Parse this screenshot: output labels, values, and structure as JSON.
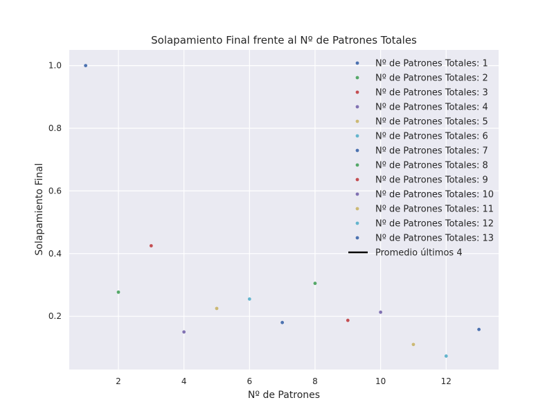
{
  "chart_data": {
    "type": "scatter",
    "title": "Solapamiento Final frente al Nº de Patrones Totales",
    "xlabel": "Nº de Patrones",
    "ylabel": "Solapamiento Final",
    "xlim": [
      0.5,
      13.6
    ],
    "ylim": [
      0.03,
      1.05
    ],
    "xticks": [
      2,
      4,
      6,
      8,
      10,
      12
    ],
    "yticks": [
      0.2,
      0.4,
      0.6,
      0.8,
      1.0
    ],
    "xtick_labels": [
      "2",
      "4",
      "6",
      "8",
      "10",
      "12"
    ],
    "ytick_labels": [
      "0.2",
      "0.4",
      "0.6",
      "0.8",
      "1.0"
    ],
    "grid": true,
    "legend_position": "top-right",
    "series": [
      {
        "name": "Nº de Patrones Totales: 1",
        "x": [
          1
        ],
        "y": [
          1.0
        ],
        "color": "#4c72b0"
      },
      {
        "name": "Nº de Patrones Totales: 2",
        "x": [
          2
        ],
        "y": [
          0.277
        ],
        "color": "#55a868"
      },
      {
        "name": "Nº de Patrones Totales: 3",
        "x": [
          3
        ],
        "y": [
          0.425
        ],
        "color": "#c44e52"
      },
      {
        "name": "Nº de Patrones Totales: 4",
        "x": [
          4
        ],
        "y": [
          0.15
        ],
        "color": "#8172b2"
      },
      {
        "name": "Nº de Patrones Totales: 5",
        "x": [
          5
        ],
        "y": [
          0.225
        ],
        "color": "#ccb974"
      },
      {
        "name": "Nº de Patrones Totales: 6",
        "x": [
          6
        ],
        "y": [
          0.255
        ],
        "color": "#64b5cd"
      },
      {
        "name": "Nº de Patrones Totales: 7",
        "x": [
          7
        ],
        "y": [
          0.18
        ],
        "color": "#4c72b0"
      },
      {
        "name": "Nº de Patrones Totales: 8",
        "x": [
          8
        ],
        "y": [
          0.305
        ],
        "color": "#55a868"
      },
      {
        "name": "Nº de Patrones Totales: 9",
        "x": [
          9
        ],
        "y": [
          0.187
        ],
        "color": "#c44e52"
      },
      {
        "name": "Nº de Patrones Totales: 10",
        "x": [
          10
        ],
        "y": [
          0.213
        ],
        "color": "#8172b2"
      },
      {
        "name": "Nº de Patrones Totales: 11",
        "x": [
          11
        ],
        "y": [
          0.11
        ],
        "color": "#ccb974"
      },
      {
        "name": "Nº de Patrones Totales: 12",
        "x": [
          12
        ],
        "y": [
          0.073
        ],
        "color": "#64b5cd"
      },
      {
        "name": "Nº de Patrones Totales: 13",
        "x": [
          13
        ],
        "y": [
          0.158
        ],
        "color": "#4c72b0"
      }
    ],
    "line_legend": {
      "name": "Promedio últimos 4",
      "color": "#000000"
    }
  }
}
